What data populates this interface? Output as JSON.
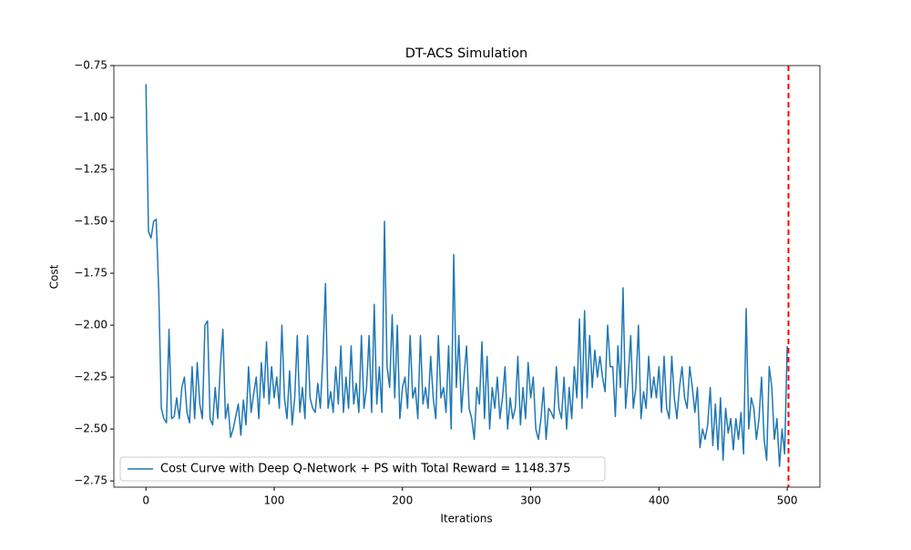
{
  "chart_data": {
    "type": "line",
    "title": "DT-ACS Simulation",
    "x_label": "Iterations",
    "y_label": "Cost",
    "x": [
      0,
      2,
      4,
      6,
      8,
      10,
      12,
      14,
      16,
      18,
      20,
      22,
      24,
      26,
      28,
      30,
      32,
      34,
      36,
      38,
      40,
      42,
      44,
      46,
      48,
      50,
      52,
      54,
      56,
      58,
      60,
      62,
      64,
      66,
      68,
      70,
      72,
      74,
      76,
      78,
      80,
      82,
      84,
      86,
      88,
      90,
      92,
      94,
      96,
      98,
      100,
      102,
      104,
      106,
      108,
      110,
      112,
      114,
      116,
      118,
      120,
      122,
      124,
      126,
      128,
      130,
      132,
      134,
      136,
      138,
      140,
      142,
      144,
      146,
      148,
      150,
      152,
      154,
      156,
      158,
      160,
      162,
      164,
      166,
      168,
      170,
      172,
      174,
      176,
      178,
      180,
      182,
      184,
      186,
      188,
      190,
      192,
      194,
      196,
      198,
      200,
      202,
      204,
      206,
      208,
      210,
      212,
      214,
      216,
      218,
      220,
      222,
      224,
      226,
      228,
      230,
      232,
      234,
      236,
      238,
      240,
      242,
      244,
      246,
      248,
      250,
      252,
      254,
      256,
      258,
      260,
      262,
      264,
      266,
      268,
      270,
      272,
      274,
      276,
      278,
      280,
      282,
      284,
      286,
      288,
      290,
      292,
      294,
      296,
      298,
      300,
      302,
      304,
      306,
      308,
      310,
      312,
      314,
      316,
      318,
      320,
      322,
      324,
      326,
      328,
      330,
      332,
      334,
      336,
      338,
      340,
      342,
      344,
      346,
      348,
      350,
      352,
      354,
      356,
      358,
      360,
      362,
      364,
      366,
      368,
      370,
      372,
      374,
      376,
      378,
      380,
      382,
      384,
      386,
      388,
      390,
      392,
      394,
      396,
      398,
      400,
      402,
      404,
      406,
      408,
      410,
      412,
      414,
      416,
      418,
      420,
      422,
      424,
      426,
      428,
      430,
      432,
      434,
      436,
      438,
      440,
      442,
      444,
      446,
      448,
      450,
      452,
      454,
      456,
      458,
      460,
      462,
      464,
      466,
      468,
      470,
      472,
      474,
      476,
      478,
      480,
      482,
      484,
      486,
      488,
      490,
      492,
      494,
      496,
      498,
      500
    ],
    "series": [
      {
        "name": "Cost Curve with Deep Q-Network + PS with Total Reward = 1148.375",
        "color": "#1f77b4",
        "values": [
          -0.84,
          -1.55,
          -1.58,
          -1.5,
          -1.49,
          -1.84,
          -2.4,
          -2.45,
          -2.47,
          -2.02,
          -2.45,
          -2.44,
          -2.35,
          -2.45,
          -2.3,
          -2.25,
          -2.42,
          -2.47,
          -2.2,
          -2.45,
          -2.18,
          -2.38,
          -2.45,
          -2.0,
          -1.98,
          -2.45,
          -2.48,
          -2.3,
          -2.45,
          -2.2,
          -2.02,
          -2.45,
          -2.38,
          -2.54,
          -2.5,
          -2.44,
          -2.38,
          -2.53,
          -2.36,
          -2.48,
          -2.2,
          -2.42,
          -2.33,
          -2.25,
          -2.45,
          -2.18,
          -2.35,
          -2.08,
          -2.38,
          -2.2,
          -2.35,
          -2.25,
          -2.4,
          -2.0,
          -2.35,
          -2.45,
          -2.22,
          -2.48,
          -2.35,
          -2.05,
          -2.42,
          -2.3,
          -2.45,
          -2.05,
          -2.35,
          -2.4,
          -2.42,
          -2.28,
          -2.4,
          -2.15,
          -1.8,
          -2.4,
          -2.32,
          -2.42,
          -2.2,
          -2.38,
          -2.1,
          -2.42,
          -2.25,
          -2.4,
          -2.1,
          -2.38,
          -2.28,
          -2.42,
          -2.05,
          -2.4,
          -2.3,
          -2.05,
          -2.42,
          -1.9,
          -2.38,
          -2.2,
          -2.42,
          -1.5,
          -2.2,
          -2.3,
          -1.95,
          -2.35,
          -2.0,
          -2.45,
          -2.3,
          -2.25,
          -2.4,
          -2.05,
          -2.35,
          -2.3,
          -2.45,
          -2.05,
          -2.38,
          -2.3,
          -2.4,
          -2.15,
          -2.35,
          -2.45,
          -2.05,
          -2.35,
          -2.3,
          -2.42,
          -2.1,
          -2.5,
          -1.66,
          -2.3,
          -2.05,
          -2.42,
          -2.25,
          -2.1,
          -2.4,
          -2.45,
          -2.55,
          -2.3,
          -2.38,
          -2.08,
          -2.45,
          -2.15,
          -2.5,
          -2.3,
          -2.4,
          -2.25,
          -2.45,
          -2.35,
          -2.2,
          -2.5,
          -2.35,
          -2.45,
          -2.4,
          -2.15,
          -2.48,
          -2.3,
          -2.45,
          -2.18,
          -2.35,
          -2.25,
          -2.5,
          -2.55,
          -2.45,
          -2.3,
          -2.55,
          -2.4,
          -2.42,
          -2.45,
          -2.2,
          -2.4,
          -2.45,
          -2.25,
          -2.5,
          -2.3,
          -2.45,
          -2.2,
          -2.35,
          -1.97,
          -2.4,
          -1.93,
          -2.35,
          -2.05,
          -2.3,
          -2.12,
          -2.25,
          -2.15,
          -2.25,
          -2.32,
          -2.0,
          -2.2,
          -2.2,
          -2.44,
          -2.1,
          -2.3,
          -1.82,
          -2.4,
          -2.25,
          -2.05,
          -2.4,
          -2.3,
          -2.0,
          -2.45,
          -2.32,
          -2.4,
          -2.15,
          -2.35,
          -2.25,
          -2.35,
          -2.2,
          -2.42,
          -2.15,
          -2.4,
          -2.45,
          -2.15,
          -2.35,
          -2.45,
          -2.3,
          -2.2,
          -2.35,
          -2.4,
          -2.2,
          -2.3,
          -2.42,
          -2.3,
          -2.59,
          -2.5,
          -2.55,
          -2.48,
          -2.3,
          -2.58,
          -2.38,
          -2.6,
          -2.35,
          -2.65,
          -2.4,
          -2.52,
          -2.45,
          -2.6,
          -2.45,
          -2.55,
          -2.42,
          -2.62,
          -1.92,
          -2.5,
          -2.35,
          -2.4,
          -2.55,
          -2.45,
          -2.25,
          -2.55,
          -2.65,
          -2.2,
          -2.3,
          -2.55,
          -2.45,
          -2.68,
          -2.5,
          -2.62,
          -2.1
        ]
      }
    ],
    "vline": 501,
    "vline_color": "#ff0000",
    "xlim": [
      -25,
      525.5
    ],
    "xticks": [
      0,
      100,
      200,
      300,
      400,
      500
    ],
    "ylim": [
      -2.78,
      -0.75
    ],
    "yticks": [
      {
        "value": -2.75,
        "label": "−2.75"
      },
      {
        "value": -2.5,
        "label": "−2.50"
      },
      {
        "value": -2.25,
        "label": "−2.25"
      },
      {
        "value": -2.0,
        "label": "−2.00"
      },
      {
        "value": -1.75,
        "label": "−1.75"
      },
      {
        "value": -1.5,
        "label": "−1.50"
      },
      {
        "value": -1.25,
        "label": "−1.25"
      },
      {
        "value": -1.0,
        "label": "−1.00"
      },
      {
        "value": -0.75,
        "label": "−0.75"
      }
    ],
    "legend": "lower left",
    "grid": false
  }
}
